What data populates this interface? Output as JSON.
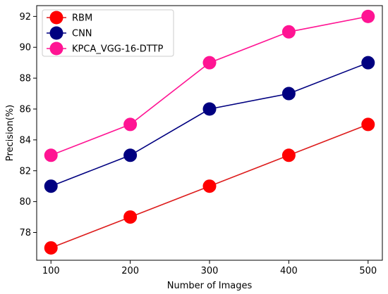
{
  "chart_data": {
    "type": "line",
    "title": "",
    "xlabel": "Number of Images",
    "ylabel": "Precision(%)",
    "x": [
      100,
      200,
      300,
      400,
      500
    ],
    "xticks": [
      100,
      200,
      300,
      400,
      500
    ],
    "yticks": [
      78,
      80,
      82,
      84,
      86,
      88,
      90,
      92
    ],
    "xlim": [
      82,
      518
    ],
    "ylim": [
      76.2,
      92.7
    ],
    "grid": false,
    "legend_position": "top-left",
    "series": [
      {
        "name": "RBM",
        "values": [
          77,
          79,
          81,
          83,
          85
        ],
        "color": "#ff0000",
        "line_color": "#dd1c1c"
      },
      {
        "name": "CNN",
        "values": [
          81,
          83,
          86,
          87,
          89
        ],
        "color": "#000080",
        "line_color": "#000080"
      },
      {
        "name": "KPCA_VGG-16-DTTP",
        "values": [
          83,
          85,
          89,
          91,
          92
        ],
        "color": "#ff1493",
        "line_color": "#ff1493"
      }
    ]
  }
}
